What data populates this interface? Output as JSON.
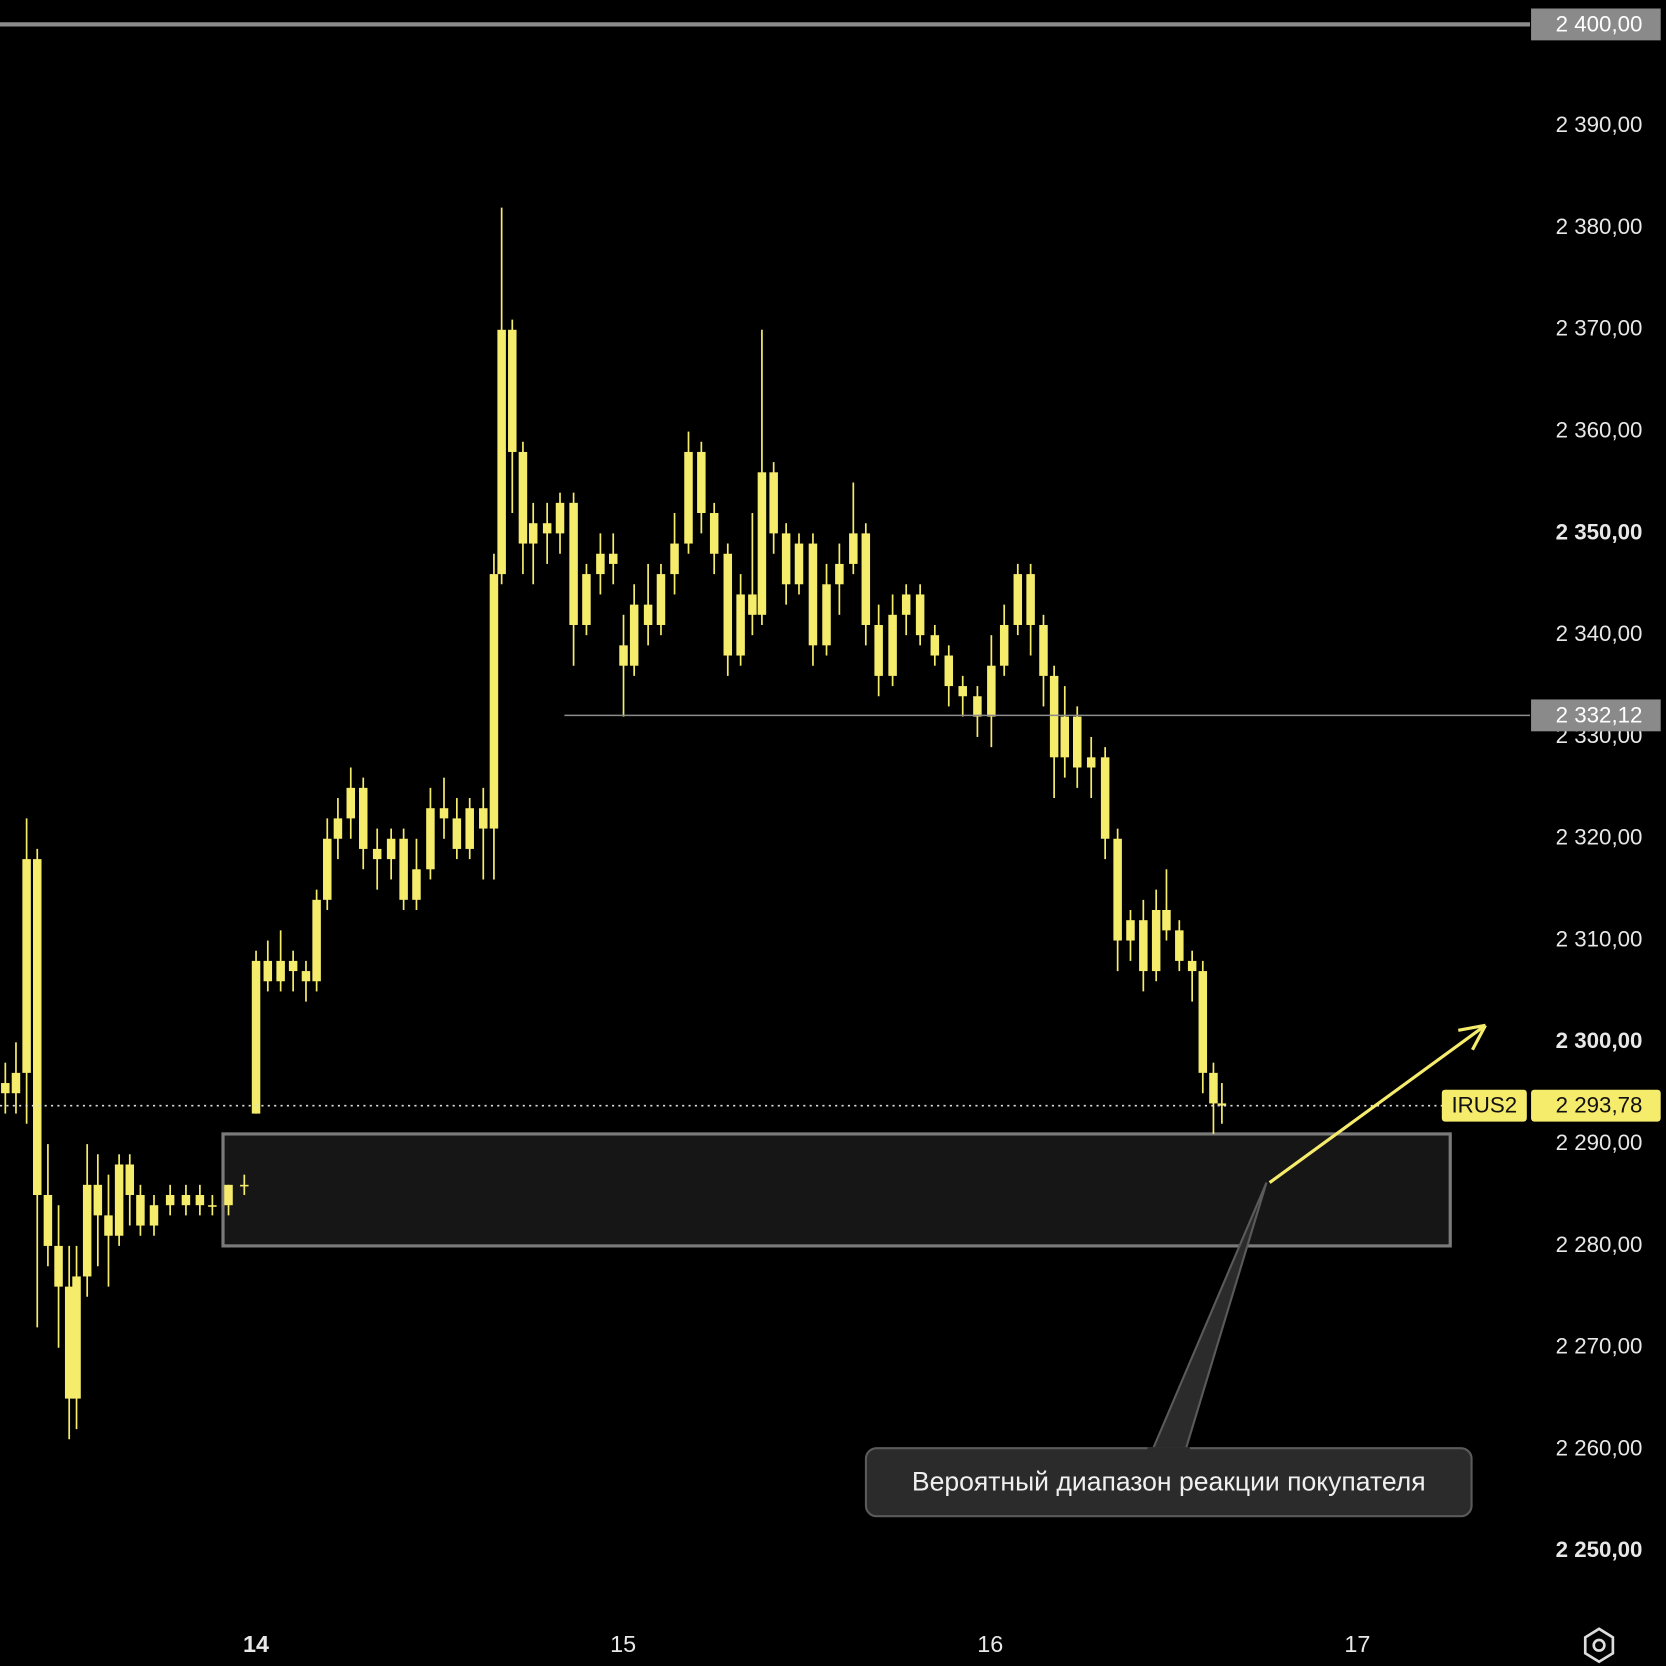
{
  "chart_data": {
    "type": "candlestick",
    "x": [
      13.317,
      13.346,
      13.375,
      13.404,
      13.433,
      13.462,
      13.491,
      13.511,
      13.54,
      13.569,
      13.598,
      13.627,
      13.656,
      13.685,
      13.722,
      13.766,
      13.809,
      13.847,
      13.881,
      13.925,
      13.968,
      14.0,
      14.032,
      14.067,
      14.101,
      14.136,
      14.165,
      14.194,
      14.223,
      14.258,
      14.292,
      14.33,
      14.368,
      14.402,
      14.437,
      14.475,
      14.512,
      14.547,
      14.582,
      14.619,
      14.648,
      14.669,
      14.698,
      14.727,
      14.755,
      14.793,
      14.828,
      14.865,
      14.9,
      14.938,
      14.973,
      15.001,
      15.03,
      15.068,
      15.103,
      15.14,
      15.178,
      15.213,
      15.248,
      15.285,
      15.32,
      15.352,
      15.378,
      15.41,
      15.444,
      15.479,
      15.517,
      15.554,
      15.589,
      15.627,
      15.661,
      15.696,
      15.734,
      15.771,
      15.809,
      15.849,
      15.887,
      15.925,
      15.965,
      16.003,
      16.038,
      16.075,
      16.11,
      16.145,
      16.174,
      16.203,
      16.237,
      16.275,
      16.313,
      16.347,
      16.382,
      16.417,
      16.452,
      16.48,
      16.515,
      16.55,
      16.579,
      16.608,
      16.631
    ],
    "series": [
      {
        "name": "IRUS2",
        "color": "#f6ec6c",
        "open": [
          2296,
          2295,
          2297,
          2318,
          2285,
          2280,
          2276,
          2265,
          2277,
          2286,
          2283,
          2281,
          2288,
          2285,
          2282,
          2284,
          2285,
          2284,
          2284,
          2284,
          2286,
          2293,
          2308,
          2306,
          2308,
          2307,
          2306,
          2314,
          2320,
          2322,
          2325,
          2319,
          2318,
          2320,
          2314,
          2317,
          2323,
          2322,
          2319,
          2323,
          2321,
          2346,
          2370,
          2358,
          2349,
          2351,
          2350,
          2353,
          2341,
          2346,
          2348,
          2339,
          2337,
          2343,
          2341,
          2346,
          2349,
          2358,
          2352,
          2348,
          2338,
          2344,
          2342,
          2356,
          2350,
          2345,
          2349,
          2339,
          2345,
          2347,
          2350,
          2341,
          2336,
          2342,
          2344,
          2340,
          2338,
          2335,
          2334,
          2332,
          2337,
          2341,
          2346,
          2341,
          2336,
          2328,
          2332,
          2327,
          2328,
          2320,
          2310,
          2312,
          2307,
          2313,
          2311,
          2308,
          2307,
          2297,
          2294
        ],
        "high": [
          2298,
          2300,
          2322,
          2319,
          2290,
          2284,
          2280,
          2280,
          2290,
          2289,
          2287,
          2289,
          2289,
          2286,
          2285,
          2286,
          2286,
          2286,
          2285,
          2286,
          2287,
          2309,
          2310,
          2311,
          2309,
          2308,
          2315,
          2322,
          2324,
          2327,
          2326,
          2321,
          2321,
          2321,
          2320,
          2325,
          2326,
          2324,
          2324,
          2325,
          2348,
          2382,
          2371,
          2359,
          2353,
          2353,
          2354,
          2354,
          2347,
          2350,
          2350,
          2342,
          2345,
          2347,
          2347,
          2352,
          2360,
          2359,
          2353,
          2349,
          2346,
          2352,
          2370,
          2357,
          2351,
          2350,
          2350,
          2347,
          2349,
          2355,
          2351,
          2343,
          2344,
          2345,
          2345,
          2341,
          2339,
          2336,
          2335,
          2340,
          2343,
          2347,
          2347,
          2342,
          2337,
          2335,
          2333,
          2330,
          2329,
          2321,
          2313,
          2314,
          2315,
          2317,
          2312,
          2309,
          2308,
          2298,
          2296
        ],
        "low": [
          2293,
          2293,
          2292,
          2272,
          2278,
          2270,
          2261,
          2262,
          2275,
          2278,
          2276,
          2280,
          2282,
          2281,
          2281,
          2283,
          2283,
          2283,
          2283,
          2283,
          2285,
          2293,
          2305,
          2305,
          2305,
          2304,
          2305,
          2313,
          2318,
          2320,
          2317,
          2315,
          2316,
          2313,
          2313,
          2316,
          2320,
          2318,
          2318,
          2316,
          2316,
          2345,
          2352,
          2346,
          2345,
          2347,
          2348,
          2337,
          2340,
          2344,
          2345,
          2332,
          2336,
          2339,
          2340,
          2344,
          2348,
          2350,
          2346,
          2336,
          2337,
          2340,
          2341,
          2348,
          2343,
          2344,
          2337,
          2338,
          2342,
          2346,
          2339,
          2334,
          2335,
          2340,
          2339,
          2337,
          2333,
          2332,
          2330,
          2329,
          2336,
          2340,
          2338,
          2333,
          2324,
          2326,
          2325,
          2324,
          2318,
          2307,
          2308,
          2305,
          2306,
          2310,
          2307,
          2304,
          2295,
          2291,
          2292
        ],
        "close": [
          2295,
          2297,
          2318,
          2285,
          2280,
          2276,
          2265,
          2277,
          2286,
          2283,
          2281,
          2288,
          2285,
          2282,
          2284,
          2285,
          2284,
          2285,
          2284,
          2286,
          2286,
          2308,
          2306,
          2308,
          2307,
          2306,
          2314,
          2320,
          2322,
          2325,
          2319,
          2318,
          2320,
          2314,
          2317,
          2323,
          2322,
          2319,
          2323,
          2321,
          2346,
          2370,
          2358,
          2349,
          2351,
          2350,
          2353,
          2341,
          2346,
          2348,
          2347,
          2337,
          2343,
          2341,
          2346,
          2349,
          2358,
          2352,
          2348,
          2338,
          2344,
          2342,
          2356,
          2350,
          2345,
          2349,
          2339,
          2345,
          2347,
          2350,
          2341,
          2336,
          2342,
          2344,
          2340,
          2338,
          2335,
          2334,
          2332,
          2337,
          2341,
          2346,
          2341,
          2336,
          2328,
          2332,
          2327,
          2328,
          2320,
          2310,
          2312,
          2307,
          2313,
          2311,
          2308,
          2307,
          2297,
          2294,
          2293.78
        ]
      }
    ],
    "xlim": [
      13.3025,
      17.4703
    ],
    "xticks": [
      14,
      15,
      16,
      17
    ],
    "ylim": [
      2243.74,
      2402.4
    ],
    "yticks": [
      {
        "value": 2250,
        "label": "2 250,00"
      },
      {
        "value": 2260,
        "label": "2 260,00"
      },
      {
        "value": 2270,
        "label": "2 270,00"
      },
      {
        "value": 2280,
        "label": "2 280,00"
      },
      {
        "value": 2290,
        "label": "2 290,00"
      },
      {
        "value": 2300,
        "label": "2 300,00"
      },
      {
        "value": 2310,
        "label": "2 310,00"
      },
      {
        "value": 2320,
        "label": "2 320,00"
      },
      {
        "value": 2330,
        "label": "2 330,00"
      },
      {
        "value": 2340,
        "label": "2 340,00"
      },
      {
        "value": 2350,
        "label": "2 350,00"
      },
      {
        "value": 2360,
        "label": "2 360,00"
      },
      {
        "value": 2370,
        "label": "2 370,00"
      },
      {
        "value": 2380,
        "label": "2 380,00"
      },
      {
        "value": 2390,
        "label": "2 390,00"
      }
    ],
    "levels": [
      {
        "value": 2400,
        "label": "2 400,00"
      },
      {
        "value": 2332.12,
        "label": "2 332,12",
        "x_start": 14.84
      }
    ],
    "last_price": {
      "value": 2293.78,
      "label": "2 293,78"
    },
    "zone": {
      "x": [
        13.91,
        17.253
      ],
      "y": [
        2280,
        2291
      ]
    },
    "arrow": {
      "x": [
        16.761,
        17.349
      ],
      "y": [
        2286.22,
        2301.67
      ]
    },
    "annotation": "Вероятный диапазон реакции покупателя"
  }
}
